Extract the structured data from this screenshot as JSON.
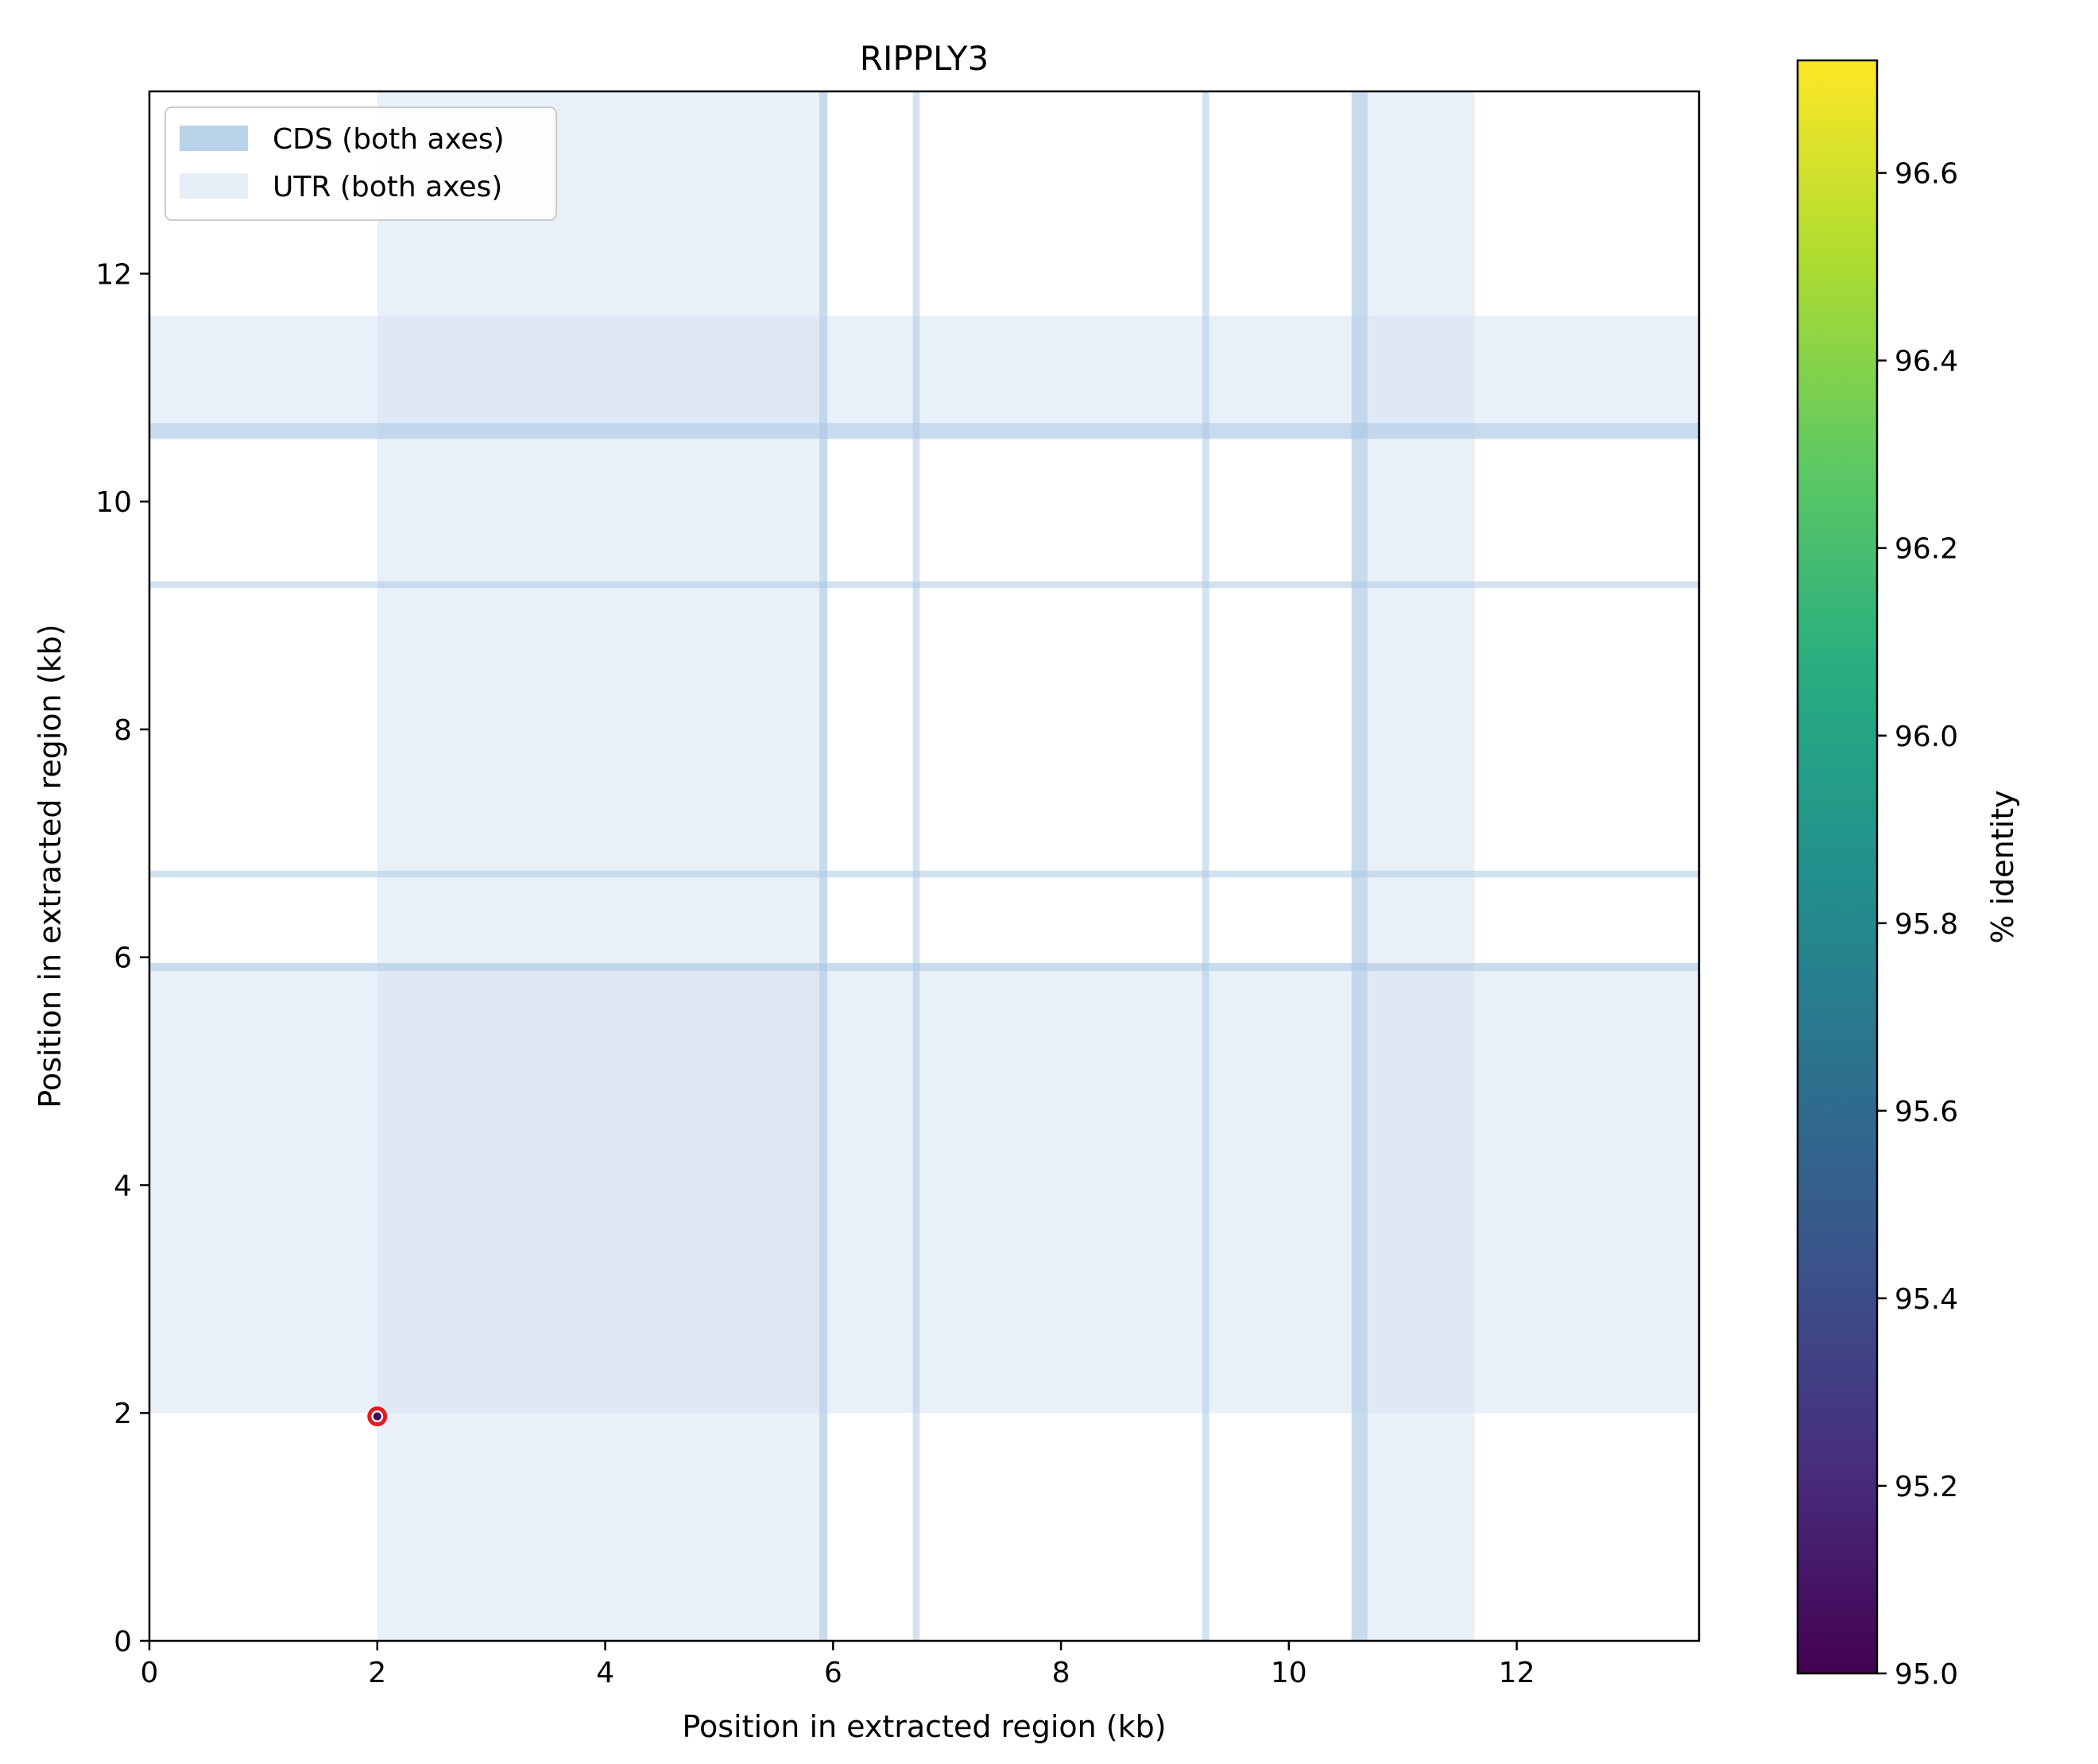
{
  "chart_data": {
    "type": "scatter",
    "title": "RIPPLY3",
    "xlabel": "Position in extracted region (kb)",
    "ylabel": "Position in extracted region (kb)",
    "xlim": [
      0,
      13.6
    ],
    "ylim": [
      0,
      13.6
    ],
    "xticks": [
      "0",
      "2",
      "4",
      "6",
      "8",
      "10",
      "12"
    ],
    "yticks": [
      "0",
      "2",
      "4",
      "6",
      "8",
      "10",
      "12"
    ],
    "grid": false,
    "legend": {
      "placement": "top-left",
      "entries": [
        {
          "label": "CDS (both axes)",
          "color": "#b9d3ea"
        },
        {
          "label": "UTR (both axes)",
          "color": "#e6eef7"
        }
      ]
    },
    "utr_intervals": [
      [
        2.0,
        5.95
      ],
      [
        10.55,
        11.63
      ]
    ],
    "cds_intervals": [
      [
        5.88,
        5.95
      ],
      [
        6.7,
        6.76
      ],
      [
        9.24,
        9.3
      ],
      [
        10.55,
        10.69
      ]
    ],
    "points": [
      {
        "x": 2.0,
        "y": 1.97,
        "identity": 95.0,
        "highlight": "#e41a1c"
      }
    ],
    "colorbar": {
      "label": "% identity",
      "min": 95.0,
      "max": 96.72,
      "ticks": [
        "95.0",
        "95.2",
        "95.4",
        "95.6",
        "95.8",
        "96.0",
        "96.2",
        "96.4",
        "96.6"
      ],
      "colormap": [
        "#440154",
        "#472d7b",
        "#3b528b",
        "#2c728e",
        "#21918c",
        "#28ae80",
        "#5ec962",
        "#addc30",
        "#fde725"
      ]
    },
    "colors": {
      "cds": "#b9d3ea",
      "utr": "#e6eef7"
    }
  }
}
